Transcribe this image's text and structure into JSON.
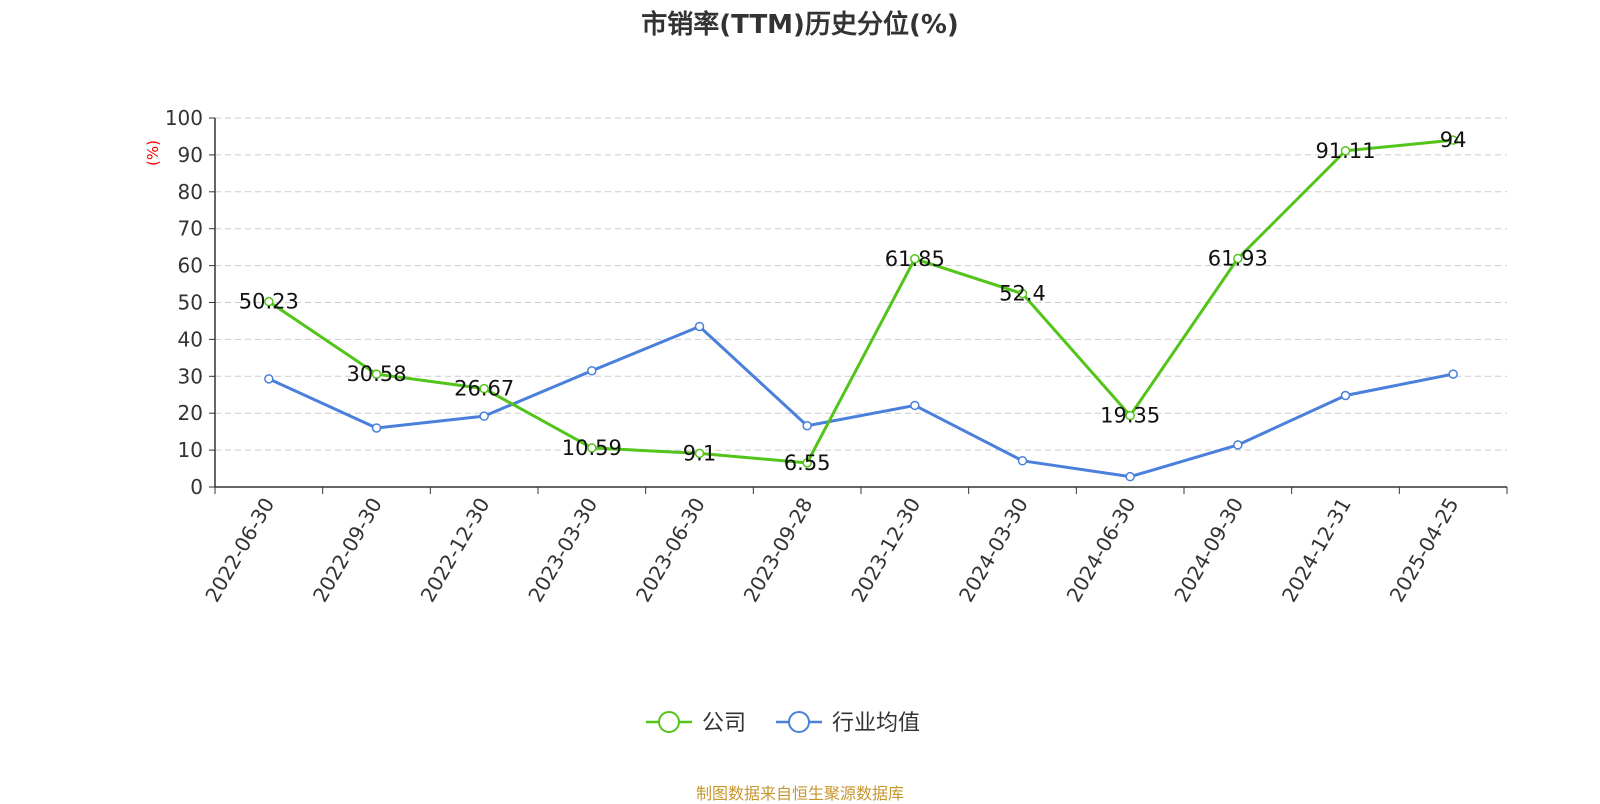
{
  "chart_data": {
    "type": "line",
    "title": "市销率(TTM)历史分位(%)",
    "ylabel": "(%)",
    "ylim": [
      0,
      100
    ],
    "yticks": [
      0,
      10,
      20,
      30,
      40,
      50,
      60,
      70,
      80,
      90,
      100
    ],
    "grid": true,
    "legend_position": "bottom",
    "categories": [
      "2022-06-30",
      "2022-09-30",
      "2022-12-30",
      "2023-03-30",
      "2023-06-30",
      "2023-09-28",
      "2023-12-30",
      "2024-03-30",
      "2024-06-30",
      "2024-09-30",
      "2024-12-31",
      "2025-04-25"
    ],
    "series": [
      {
        "name": "公司",
        "color": "#52c41a",
        "values": [
          50.23,
          30.58,
          26.67,
          10.59,
          9.1,
          6.55,
          61.85,
          52.4,
          19.35,
          61.93,
          91.11,
          94
        ],
        "labels": [
          "50.23",
          "30.58",
          "26.67",
          "10.59",
          "9.1",
          "6.55",
          "61.85",
          "52.4",
          "19.35",
          "61.93",
          "91.11",
          "94"
        ]
      },
      {
        "name": "行业均值",
        "color": "#4a7fdc",
        "values": [
          29.3,
          16.0,
          19.2,
          31.5,
          43.5,
          16.6,
          22.1,
          7.1,
          2.8,
          11.4,
          24.8,
          30.6
        ]
      }
    ]
  },
  "source": "制图数据来自恒生聚源数据库"
}
